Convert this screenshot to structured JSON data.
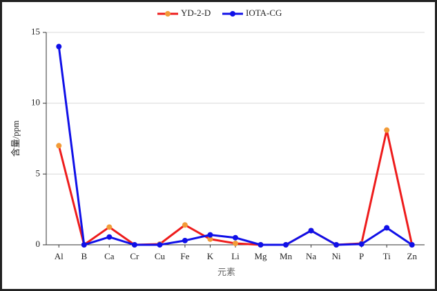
{
  "chart_data": {
    "type": "line",
    "categories": [
      "Al",
      "B",
      "Ca",
      "Cr",
      "Cu",
      "Fe",
      "K",
      "Li",
      "Mg",
      "Mn",
      "Na",
      "Ni",
      "P",
      "Ti",
      "Zn"
    ],
    "series": [
      {
        "name": "YD-2-D",
        "color": "#ee1c1c",
        "marker_color": "#f29b38",
        "values": [
          7.0,
          0,
          1.25,
          0,
          0.05,
          1.4,
          0.4,
          0.1,
          0,
          0,
          1.0,
          0,
          0.1,
          8.1,
          0
        ]
      },
      {
        "name": "IOTA-CG",
        "color": "#1010e8",
        "marker_color": "#1010e8",
        "values": [
          14.0,
          0,
          0.55,
          0,
          0,
          0.3,
          0.7,
          0.5,
          0,
          0,
          1.0,
          0,
          0.05,
          1.2,
          0
        ]
      }
    ],
    "xlabel": "元素",
    "ylabel": "含量/ppm",
    "ylim": [
      0,
      15
    ],
    "yticks": [
      0,
      5,
      10,
      15
    ],
    "grid": true
  }
}
